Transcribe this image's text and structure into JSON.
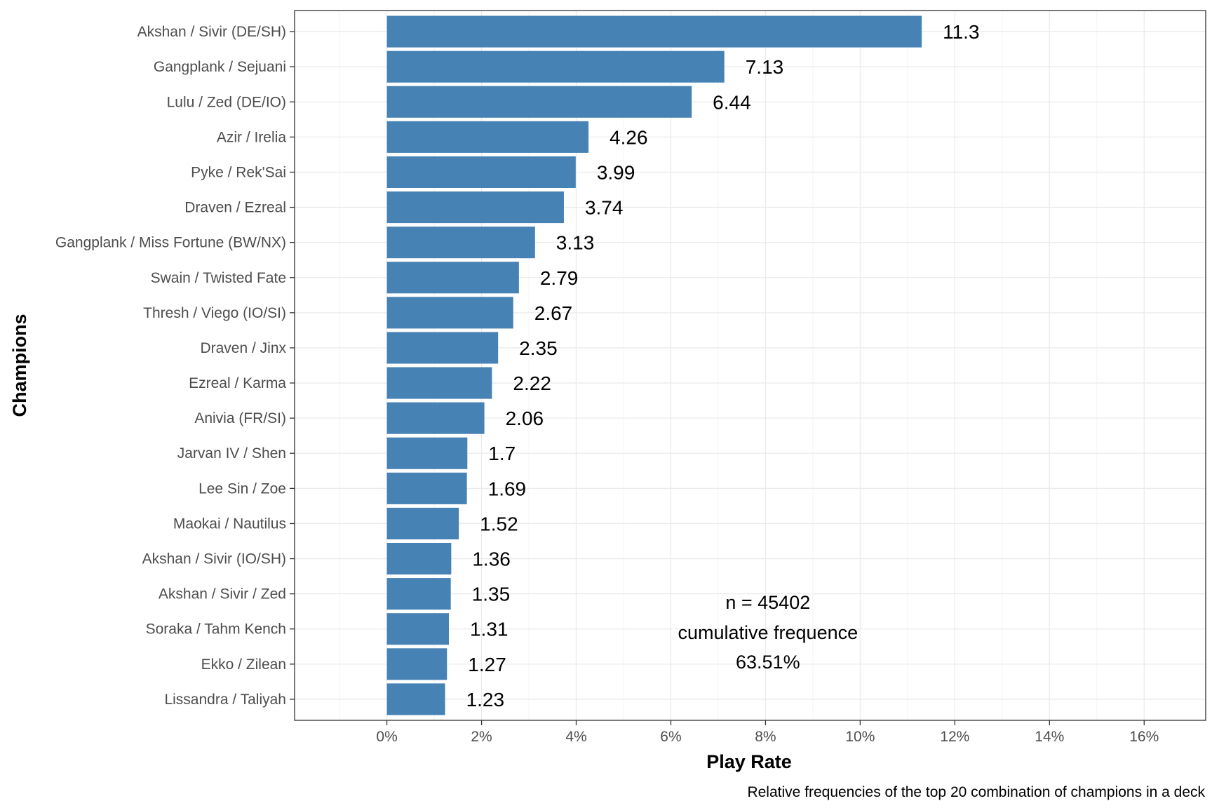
{
  "chart_data": {
    "type": "bar",
    "orientation": "horizontal",
    "categories": [
      "Akshan / Sivir (DE/SH)",
      "Gangplank / Sejuani",
      "Lulu / Zed (DE/IO)",
      "Azir / Irelia",
      "Pyke / Rek'Sai",
      "Draven / Ezreal",
      "Gangplank / Miss Fortune (BW/NX)",
      "Swain / Twisted Fate",
      "Thresh / Viego (IO/SI)",
      "Draven / Jinx",
      "Ezreal / Karma",
      "Anivia (FR/SI)",
      "Jarvan IV / Shen",
      "Lee Sin / Zoe",
      "Maokai / Nautilus",
      "Akshan / Sivir (IO/SH)",
      "Akshan / Sivir / Zed",
      "Soraka / Tahm Kench",
      "Ekko / Zilean",
      "Lissandra / Taliyah"
    ],
    "values": [
      11.3,
      7.13,
      6.44,
      4.26,
      3.99,
      3.74,
      3.13,
      2.79,
      2.67,
      2.35,
      2.22,
      2.06,
      1.7,
      1.69,
      1.52,
      1.36,
      1.35,
      1.31,
      1.27,
      1.23
    ],
    "data_labels": [
      "11.3",
      "7.13",
      "6.44",
      "4.26",
      "3.99",
      "3.74",
      "3.13",
      "2.79",
      "2.67",
      "2.35",
      "2.22",
      "2.06",
      "1.7",
      "1.69",
      "1.52",
      "1.36",
      "1.35",
      "1.31",
      "1.27",
      "1.23"
    ],
    "xlabel": "Play Rate",
    "ylabel": "Champions",
    "xlim": [
      -1.95,
      17.3
    ],
    "x_ticks": [
      0,
      2,
      4,
      6,
      8,
      10,
      12,
      14,
      16
    ],
    "x_tick_labels": [
      "0%",
      "2%",
      "4%",
      "6%",
      "8%",
      "10%",
      "12%",
      "14%",
      "16%"
    ],
    "grid": true,
    "legend": "none",
    "annotation": {
      "lines": [
        "n = 45402",
        "cumulative frequence",
        "63.51%"
      ],
      "x": 8.05
    },
    "caption": "Relative frequencies of the top 20 combination of champions in a deck",
    "bar_color": "#4682b4"
  }
}
